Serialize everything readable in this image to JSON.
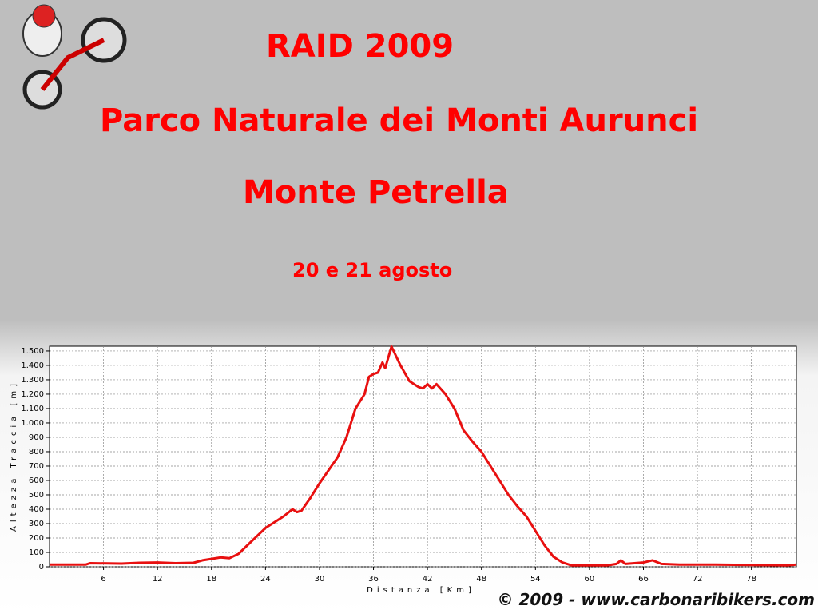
{
  "slide": {
    "title": "RAID 2009",
    "subtitle": "Parco Naturale dei Monti Aurunci",
    "place": "Monte Petrella",
    "date": "20 e 21 agosto",
    "footer": "© 2009 - www.carbonaribikers.com"
  },
  "chart_data": {
    "type": "line",
    "x_label": "Distanza [Km]",
    "y_label": "Altezza Traccia [m]",
    "x": [
      0,
      4,
      4.5,
      8,
      10,
      12,
      14,
      16,
      17,
      18,
      19,
      20,
      21,
      22,
      23,
      24,
      25,
      26,
      27,
      27.5,
      28,
      29,
      30,
      31,
      32,
      33,
      34,
      35,
      35.5,
      36,
      36.5,
      37,
      37.3,
      38,
      39,
      40,
      41,
      41.5,
      42,
      42.5,
      43,
      44,
      45,
      46,
      47,
      48,
      49,
      50,
      51,
      52,
      53,
      54,
      55,
      56,
      57,
      58,
      60,
      62,
      63,
      63.5,
      64,
      65,
      66,
      67,
      68,
      70,
      74,
      78,
      82,
      83
    ],
    "values": [
      15,
      15,
      25,
      22,
      28,
      30,
      25,
      28,
      45,
      55,
      65,
      60,
      90,
      150,
      210,
      270,
      310,
      350,
      400,
      380,
      390,
      480,
      580,
      670,
      760,
      900,
      1100,
      1200,
      1320,
      1340,
      1350,
      1420,
      1380,
      1530,
      1400,
      1290,
      1250,
      1240,
      1270,
      1240,
      1270,
      1200,
      1100,
      950,
      870,
      800,
      700,
      600,
      500,
      420,
      350,
      250,
      150,
      70,
      30,
      10,
      10,
      10,
      20,
      45,
      20,
      25,
      30,
      45,
      20,
      15,
      15,
      12,
      10,
      15
    ],
    "color": "#e81010",
    "xlim": [
      0,
      83
    ],
    "ylim": [
      0,
      1533
    ],
    "xticks": [
      6,
      12,
      18,
      24,
      30,
      36,
      42,
      48,
      54,
      60,
      66,
      72,
      78
    ],
    "yticks": [
      0,
      100,
      200,
      300,
      400,
      500,
      600,
      700,
      800,
      900,
      {
        "value": 1000,
        "label": "1.000"
      },
      {
        "value": 1100,
        "label": "1.100"
      },
      {
        "value": 1200,
        "label": "1.200"
      },
      {
        "value": 1300,
        "label": "1.300"
      },
      {
        "value": 1400,
        "label": "1.400"
      },
      {
        "value": 1500,
        "label": "1.500"
      }
    ],
    "grid": true
  }
}
